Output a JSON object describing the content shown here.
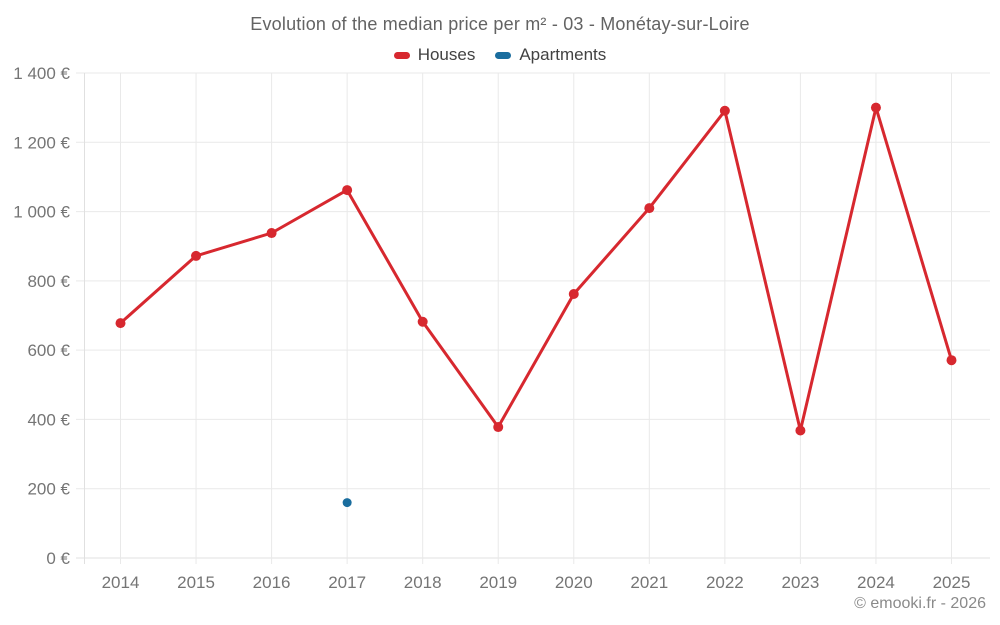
{
  "page": {
    "background": "#ffffff",
    "attribution": "© emooki.fr - 2026"
  },
  "chart_data": {
    "type": "line",
    "title": "Evolution of the median price per m² - 03 - Monétay-sur-Loire",
    "categories": [
      "2014",
      "2015",
      "2016",
      "2017",
      "2018",
      "2019",
      "2020",
      "2021",
      "2022",
      "2023",
      "2024",
      "2025"
    ],
    "series": [
      {
        "name": "Houses",
        "color": "#d7282f",
        "values": [
          678,
          872,
          938,
          1062,
          682,
          378,
          762,
          1010,
          1291,
          368,
          1300,
          571
        ]
      },
      {
        "name": "Apartments",
        "color": "#1a6d9e",
        "values": [
          null,
          null,
          null,
          160,
          null,
          null,
          null,
          null,
          null,
          null,
          null,
          null
        ]
      }
    ],
    "ylim": [
      0,
      1400
    ],
    "ytick_step": 200,
    "ytick_suffix": " €",
    "xlabel": "",
    "ylabel": "",
    "grid": true,
    "legend_position": "top"
  }
}
